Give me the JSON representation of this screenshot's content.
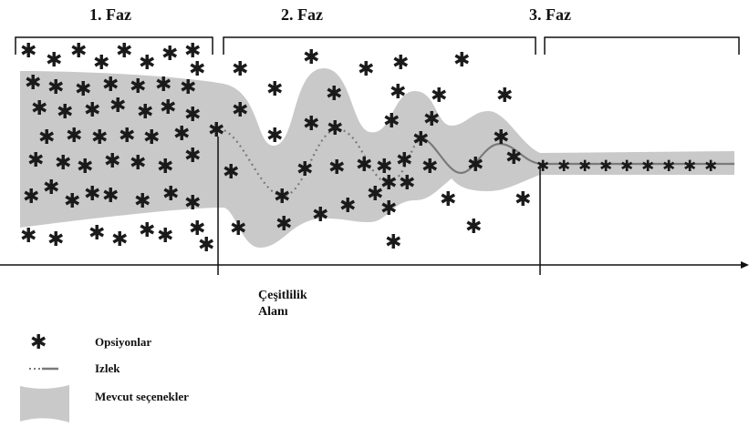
{
  "phases": [
    {
      "label": "1. Faz"
    },
    {
      "label": "2. Faz"
    },
    {
      "label": "3. Faz"
    }
  ],
  "axis_label_line1": "Çeşitlilik",
  "axis_label_line2": "Alanı",
  "legend": {
    "options": "Opsiyonlar",
    "path": "Izlek",
    "available": "Mevcut seçenekler"
  },
  "colors": {
    "band": "#c9c9c9",
    "path": "#7a7a7a",
    "ink": "#111111"
  },
  "icons": {
    "option_marker": "asterisk-icon"
  }
}
